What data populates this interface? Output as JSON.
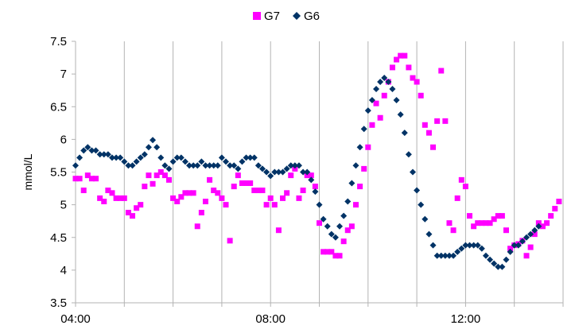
{
  "chart_data": {
    "type": "scatter",
    "xlabel": "",
    "ylabel": "mmol/L",
    "xlim": [
      "04:00",
      "14:00"
    ],
    "ylim": [
      3.5,
      7.5
    ],
    "x_ticks": [
      "04:00",
      "08:00",
      "12:00"
    ],
    "y_ticks": [
      "3.5",
      "4",
      "4.5",
      "5",
      "5.5",
      "6",
      "6.5",
      "7",
      "7.5"
    ],
    "grid": "vertical",
    "legend_position": "top",
    "series": [
      {
        "name": "G7",
        "color": "#ff00ff",
        "marker": "square",
        "points": [
          [
            "04:00",
            5.4
          ],
          [
            "04:05",
            5.4
          ],
          [
            "04:10",
            5.22
          ],
          [
            "04:15",
            5.45
          ],
          [
            "04:20",
            5.4
          ],
          [
            "04:25",
            5.4
          ],
          [
            "04:30",
            5.1
          ],
          [
            "04:35",
            5.05
          ],
          [
            "04:40",
            5.22
          ],
          [
            "04:45",
            5.18
          ],
          [
            "04:50",
            5.1
          ],
          [
            "04:55",
            5.1
          ],
          [
            "05:00",
            5.1
          ],
          [
            "05:05",
            4.88
          ],
          [
            "05:10",
            4.83
          ],
          [
            "05:15",
            4.95
          ],
          [
            "05:20",
            5.0
          ],
          [
            "05:25",
            5.28
          ],
          [
            "05:30",
            5.45
          ],
          [
            "05:35",
            5.32
          ],
          [
            "05:40",
            5.45
          ],
          [
            "05:45",
            5.5
          ],
          [
            "05:50",
            5.45
          ],
          [
            "05:55",
            5.38
          ],
          [
            "06:00",
            5.1
          ],
          [
            "06:05",
            5.05
          ],
          [
            "06:10",
            5.12
          ],
          [
            "06:15",
            5.18
          ],
          [
            "06:20",
            5.18
          ],
          [
            "06:25",
            5.18
          ],
          [
            "06:30",
            4.67
          ],
          [
            "06:35",
            4.88
          ],
          [
            "06:40",
            5.05
          ],
          [
            "06:45",
            5.38
          ],
          [
            "06:50",
            5.22
          ],
          [
            "06:55",
            5.18
          ],
          [
            "07:00",
            5.1
          ],
          [
            "07:05",
            5.0
          ],
          [
            "07:10",
            4.45
          ],
          [
            "07:15",
            5.28
          ],
          [
            "07:20",
            5.45
          ],
          [
            "07:25",
            5.33
          ],
          [
            "07:30",
            5.33
          ],
          [
            "07:35",
            5.33
          ],
          [
            "07:40",
            5.22
          ],
          [
            "07:45",
            5.22
          ],
          [
            "07:50",
            5.22
          ],
          [
            "07:55",
            5.0
          ],
          [
            "08:00",
            5.1
          ],
          [
            "08:05",
            5.0
          ],
          [
            "08:10",
            4.61
          ],
          [
            "08:15",
            5.1
          ],
          [
            "08:20",
            5.18
          ],
          [
            "08:25",
            5.45
          ],
          [
            "08:30",
            5.55
          ],
          [
            "08:35",
            5.1
          ],
          [
            "08:40",
            5.22
          ],
          [
            "08:45",
            5.45
          ],
          [
            "08:50",
            5.45
          ],
          [
            "08:55",
            5.28
          ],
          [
            "09:00",
            4.72
          ],
          [
            "09:05",
            4.28
          ],
          [
            "09:10",
            4.28
          ],
          [
            "09:15",
            4.28
          ],
          [
            "09:20",
            4.22
          ],
          [
            "09:25",
            4.22
          ],
          [
            "09:30",
            4.44
          ],
          [
            "09:35",
            4.61
          ],
          [
            "09:40",
            4.67
          ],
          [
            "09:45",
            5.0
          ],
          [
            "09:50",
            5.28
          ],
          [
            "09:55",
            5.55
          ],
          [
            "10:00",
            5.88
          ],
          [
            "10:05",
            6.22
          ],
          [
            "10:10",
            6.55
          ],
          [
            "10:15",
            6.33
          ],
          [
            "10:20",
            6.67
          ],
          [
            "10:25",
            6.88
          ],
          [
            "10:30",
            7.1
          ],
          [
            "10:35",
            7.22
          ],
          [
            "10:40",
            7.28
          ],
          [
            "10:45",
            7.28
          ],
          [
            "10:50",
            7.1
          ],
          [
            "10:55",
            6.94
          ],
          [
            "11:00",
            6.88
          ],
          [
            "11:05",
            6.67
          ],
          [
            "11:10",
            6.22
          ],
          [
            "11:15",
            6.1
          ],
          [
            "11:20",
            5.88
          ],
          [
            "11:25",
            6.28
          ],
          [
            "11:30",
            7.05
          ],
          [
            "11:35",
            6.28
          ],
          [
            "11:40",
            4.72
          ],
          [
            "11:45",
            4.61
          ],
          [
            "11:50",
            5.1
          ],
          [
            "11:55",
            5.38
          ],
          [
            "12:00",
            5.28
          ],
          [
            "12:05",
            4.83
          ],
          [
            "12:10",
            4.67
          ],
          [
            "12:15",
            4.72
          ],
          [
            "12:20",
            4.72
          ],
          [
            "12:25",
            4.72
          ],
          [
            "12:30",
            4.72
          ],
          [
            "12:35",
            4.78
          ],
          [
            "12:40",
            4.83
          ],
          [
            "12:45",
            4.83
          ],
          [
            "12:50",
            4.61
          ],
          [
            "12:55",
            4.33
          ],
          [
            "13:00",
            4.38
          ],
          [
            "13:05",
            4.4
          ],
          [
            "13:10",
            4.45
          ],
          [
            "13:15",
            4.22
          ],
          [
            "13:20",
            4.35
          ],
          [
            "13:25",
            4.55
          ],
          [
            "13:30",
            4.72
          ],
          [
            "13:35",
            4.67
          ],
          [
            "13:40",
            4.72
          ],
          [
            "13:45",
            4.83
          ],
          [
            "13:50",
            4.94
          ],
          [
            "13:55",
            5.05
          ]
        ]
      },
      {
        "name": "G6",
        "color": "#003366",
        "marker": "diamond",
        "points": [
          [
            "04:00",
            5.6
          ],
          [
            "04:05",
            5.72
          ],
          [
            "04:10",
            5.83
          ],
          [
            "04:15",
            5.88
          ],
          [
            "04:20",
            5.83
          ],
          [
            "04:25",
            5.83
          ],
          [
            "04:30",
            5.77
          ],
          [
            "04:35",
            5.77
          ],
          [
            "04:40",
            5.77
          ],
          [
            "04:45",
            5.72
          ],
          [
            "04:50",
            5.72
          ],
          [
            "04:55",
            5.72
          ],
          [
            "05:00",
            5.66
          ],
          [
            "05:05",
            5.6
          ],
          [
            "05:10",
            5.6
          ],
          [
            "05:15",
            5.66
          ],
          [
            "05:20",
            5.72
          ],
          [
            "05:25",
            5.77
          ],
          [
            "05:30",
            5.88
          ],
          [
            "05:35",
            5.99
          ],
          [
            "05:40",
            5.88
          ],
          [
            "05:45",
            5.72
          ],
          [
            "05:50",
            5.6
          ],
          [
            "05:55",
            5.55
          ],
          [
            "06:00",
            5.66
          ],
          [
            "06:05",
            5.72
          ],
          [
            "06:10",
            5.72
          ],
          [
            "06:15",
            5.66
          ],
          [
            "06:20",
            5.6
          ],
          [
            "06:25",
            5.6
          ],
          [
            "06:30",
            5.6
          ],
          [
            "06:35",
            5.66
          ],
          [
            "06:40",
            5.6
          ],
          [
            "06:45",
            5.6
          ],
          [
            "06:50",
            5.6
          ],
          [
            "06:55",
            5.6
          ],
          [
            "07:00",
            5.72
          ],
          [
            "07:05",
            5.66
          ],
          [
            "07:10",
            5.6
          ],
          [
            "07:15",
            5.6
          ],
          [
            "07:20",
            5.55
          ],
          [
            "07:25",
            5.66
          ],
          [
            "07:30",
            5.72
          ],
          [
            "07:35",
            5.72
          ],
          [
            "07:40",
            5.72
          ],
          [
            "07:45",
            5.6
          ],
          [
            "07:50",
            5.55
          ],
          [
            "07:55",
            5.5
          ],
          [
            "08:00",
            5.44
          ],
          [
            "08:05",
            5.5
          ],
          [
            "08:10",
            5.5
          ],
          [
            "08:15",
            5.5
          ],
          [
            "08:20",
            5.55
          ],
          [
            "08:25",
            5.6
          ],
          [
            "08:30",
            5.6
          ],
          [
            "08:35",
            5.6
          ],
          [
            "08:40",
            5.5
          ],
          [
            "08:45",
            5.5
          ],
          [
            "08:50",
            5.38
          ],
          [
            "08:55",
            5.2
          ],
          [
            "09:00",
            5.0
          ],
          [
            "09:05",
            4.78
          ],
          [
            "09:10",
            4.67
          ],
          [
            "09:15",
            4.55
          ],
          [
            "09:20",
            4.5
          ],
          [
            "09:25",
            4.67
          ],
          [
            "09:30",
            4.83
          ],
          [
            "09:35",
            5.05
          ],
          [
            "09:40",
            5.33
          ],
          [
            "09:45",
            5.6
          ],
          [
            "09:50",
            5.88
          ],
          [
            "09:55",
            6.16
          ],
          [
            "10:00",
            6.44
          ],
          [
            "10:05",
            6.6
          ],
          [
            "10:10",
            6.77
          ],
          [
            "10:15",
            6.88
          ],
          [
            "10:20",
            6.94
          ],
          [
            "10:25",
            6.88
          ],
          [
            "10:30",
            6.77
          ],
          [
            "10:35",
            6.6
          ],
          [
            "10:40",
            6.38
          ],
          [
            "10:45",
            6.1
          ],
          [
            "10:50",
            5.77
          ],
          [
            "10:55",
            5.5
          ],
          [
            "11:00",
            5.22
          ],
          [
            "11:05",
            5.0
          ],
          [
            "11:10",
            4.78
          ],
          [
            "11:15",
            4.55
          ],
          [
            "11:20",
            4.38
          ],
          [
            "11:25",
            4.22
          ],
          [
            "11:30",
            4.22
          ],
          [
            "11:35",
            4.22
          ],
          [
            "11:40",
            4.22
          ],
          [
            "11:45",
            4.22
          ],
          [
            "11:50",
            4.28
          ],
          [
            "11:55",
            4.33
          ],
          [
            "12:00",
            4.38
          ],
          [
            "12:05",
            4.38
          ],
          [
            "12:10",
            4.38
          ],
          [
            "12:15",
            4.38
          ],
          [
            "12:20",
            4.33
          ],
          [
            "12:25",
            4.22
          ],
          [
            "12:30",
            4.16
          ],
          [
            "12:35",
            4.1
          ],
          [
            "12:40",
            4.05
          ],
          [
            "12:45",
            4.05
          ],
          [
            "12:50",
            4.16
          ],
          [
            "12:55",
            4.28
          ],
          [
            "13:00",
            4.38
          ],
          [
            "13:05",
            4.38
          ],
          [
            "13:10",
            4.44
          ],
          [
            "13:15",
            4.5
          ],
          [
            "13:20",
            4.55
          ],
          [
            "13:25",
            4.61
          ],
          [
            "13:30",
            4.67
          ]
        ]
      }
    ]
  }
}
